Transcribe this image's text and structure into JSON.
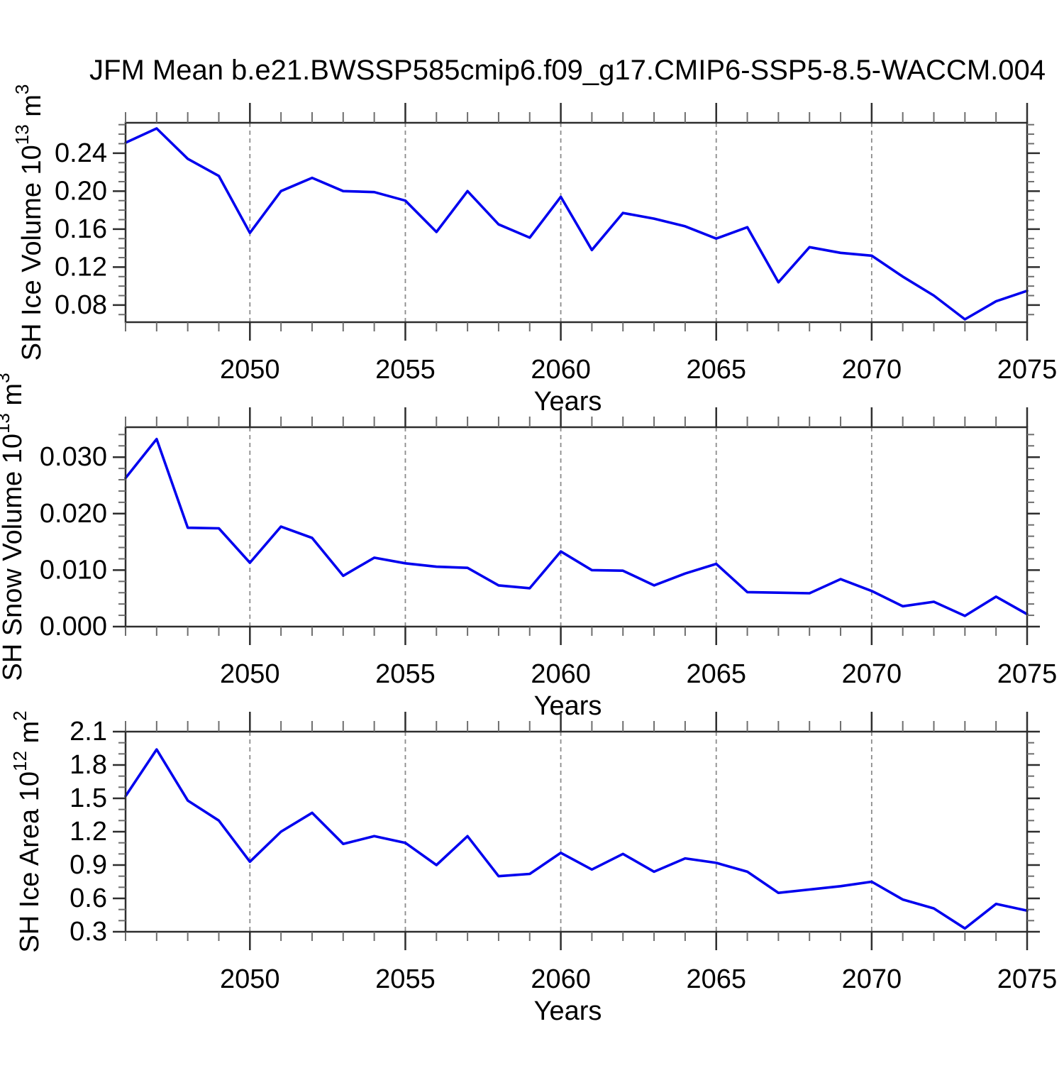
{
  "title": "JFM Mean b.e21.BWSSP585cmip6.f09_g17.CMIP6-SSP5-8.5-WACCM.004",
  "line_color": "#0000ee",
  "grid_color": "#8c8c8c",
  "axis_color": "#2e2e2e",
  "minor_tick_color": "#6e6e6e",
  "chart_data": [
    {
      "type": "line",
      "ylabel": "SH Ice Volume 10^13 m^3",
      "xlabel": "Years",
      "x": [
        2046,
        2047,
        2048,
        2049,
        2050,
        2051,
        2052,
        2053,
        2054,
        2055,
        2056,
        2057,
        2058,
        2059,
        2060,
        2061,
        2062,
        2063,
        2064,
        2065,
        2066,
        2067,
        2068,
        2069,
        2070,
        2071,
        2072,
        2073,
        2074,
        2075
      ],
      "values": [
        0.251,
        0.266,
        0.234,
        0.216,
        0.156,
        0.2,
        0.214,
        0.2,
        0.199,
        0.19,
        0.157,
        0.2,
        0.165,
        0.151,
        0.194,
        0.138,
        0.177,
        0.171,
        0.163,
        0.15,
        0.162,
        0.104,
        0.141,
        0.135,
        0.132,
        0.11,
        0.09,
        0.065,
        0.084,
        0.095
      ],
      "xlim": [
        2046,
        2075
      ],
      "ylim": [
        0.062,
        0.272
      ],
      "xticks": [
        2050,
        2055,
        2060,
        2065,
        2070,
        2075
      ],
      "xtick_minor_step": 1,
      "yticks": [
        0.08,
        0.12,
        0.16,
        0.2,
        0.24
      ],
      "ytick_labels": [
        "0.08",
        "0.12",
        "0.16",
        "0.20",
        "0.24"
      ],
      "ytick_minor_step": 0.01,
      "grid_x": [
        2050,
        2055,
        2060,
        2065,
        2070
      ],
      "legend": "none"
    },
    {
      "type": "line",
      "ylabel": "SH Snow Volume 10^13 m^3",
      "xlabel": "Years",
      "x": [
        2046,
        2047,
        2048,
        2049,
        2050,
        2051,
        2052,
        2053,
        2054,
        2055,
        2056,
        2057,
        2058,
        2059,
        2060,
        2061,
        2062,
        2063,
        2064,
        2065,
        2066,
        2067,
        2068,
        2069,
        2070,
        2071,
        2072,
        2073,
        2074,
        2075
      ],
      "values": [
        0.0263,
        0.0332,
        0.0175,
        0.0174,
        0.0113,
        0.0177,
        0.0157,
        0.009,
        0.0122,
        0.0112,
        0.0106,
        0.0104,
        0.0073,
        0.0068,
        0.0133,
        0.01,
        0.0099,
        0.0073,
        0.0094,
        0.0111,
        0.0061,
        0.006,
        0.0059,
        0.0084,
        0.0063,
        0.0036,
        0.0044,
        0.0019,
        0.0053,
        0.0022
      ],
      "xlim": [
        2046,
        2075
      ],
      "ylim": [
        0.0,
        0.0353
      ],
      "xticks": [
        2050,
        2055,
        2060,
        2065,
        2070,
        2075
      ],
      "xtick_minor_step": 1,
      "yticks": [
        0.0,
        0.01,
        0.02,
        0.03
      ],
      "ytick_labels": [
        "0.000",
        "0.010",
        "0.020",
        "0.030"
      ],
      "ytick_minor_step": 0.002,
      "grid_x": [
        2050,
        2055,
        2060,
        2065,
        2070
      ],
      "legend": "none"
    },
    {
      "type": "line",
      "ylabel": "SH Ice Area 10^12 m^2",
      "xlabel": "Years",
      "x": [
        2046,
        2047,
        2048,
        2049,
        2050,
        2051,
        2052,
        2053,
        2054,
        2055,
        2056,
        2057,
        2058,
        2059,
        2060,
        2061,
        2062,
        2063,
        2064,
        2065,
        2066,
        2067,
        2068,
        2069,
        2070,
        2071,
        2072,
        2073,
        2074,
        2075
      ],
      "values": [
        1.52,
        1.94,
        1.48,
        1.3,
        0.93,
        1.2,
        1.37,
        1.09,
        1.16,
        1.1,
        0.9,
        1.16,
        0.8,
        0.82,
        1.01,
        0.86,
        1.0,
        0.84,
        0.96,
        0.92,
        0.84,
        0.65,
        0.68,
        0.71,
        0.75,
        0.59,
        0.51,
        0.33,
        0.55,
        0.49
      ],
      "xlim": [
        2046,
        2075
      ],
      "ylim": [
        0.3,
        2.1
      ],
      "xticks": [
        2050,
        2055,
        2060,
        2065,
        2070,
        2075
      ],
      "xtick_minor_step": 1,
      "yticks": [
        0.3,
        0.6,
        0.9,
        1.2,
        1.5,
        1.8,
        2.1
      ],
      "ytick_labels": [
        "0.3",
        "0.6",
        "0.9",
        "1.2",
        "1.5",
        "1.8",
        "2.1"
      ],
      "ytick_minor_step": 0.1,
      "grid_x": [
        2050,
        2055,
        2060,
        2065,
        2070
      ],
      "legend": "none"
    }
  ]
}
